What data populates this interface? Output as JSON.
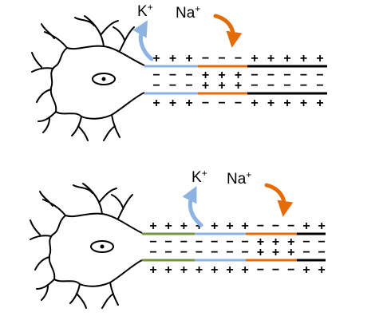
{
  "top_panel": {
    "k_label": "K+",
    "na_label": "Na+",
    "outer_top": [
      "+",
      "+",
      "+",
      "−",
      "−",
      "−",
      "+",
      "+",
      "+",
      "+",
      "+"
    ],
    "inner_top": [
      "−",
      "−",
      "−",
      "+",
      "+",
      "+",
      "−",
      "−",
      "−",
      "−",
      "−"
    ],
    "inner_bottom": [
      "−",
      "−",
      "−",
      "+",
      "+",
      "+",
      "−",
      "−",
      "−",
      "−",
      "−"
    ],
    "outer_bottom": [
      "+",
      "+",
      "+",
      "−",
      "−",
      "−",
      "+",
      "+",
      "+",
      "+",
      "+"
    ]
  },
  "bottom_panel": {
    "k_label": "K+",
    "na_label": "Na+",
    "outer_top": [
      "+",
      "+",
      "+",
      "+",
      "+",
      "+",
      "+",
      "−",
      "−",
      "−",
      "+",
      "+"
    ],
    "inner_top": [
      "−",
      "−",
      "−",
      "−",
      "−",
      "−",
      "−",
      "+",
      "+",
      "+",
      "−",
      "−"
    ],
    "inner_bottom": [
      "−",
      "−",
      "−",
      "−",
      "−",
      "−",
      "−",
      "+",
      "+",
      "+",
      "−",
      "−"
    ],
    "outer_bottom": [
      "+",
      "+",
      "+",
      "+",
      "+",
      "+",
      "+",
      "−",
      "−",
      "−",
      "+",
      "+"
    ]
  },
  "colors": {
    "k_arrow": "#8db3e2",
    "na_arrow": "#e36c09",
    "repolarized": "#77933c",
    "axon_line": "#000000"
  }
}
